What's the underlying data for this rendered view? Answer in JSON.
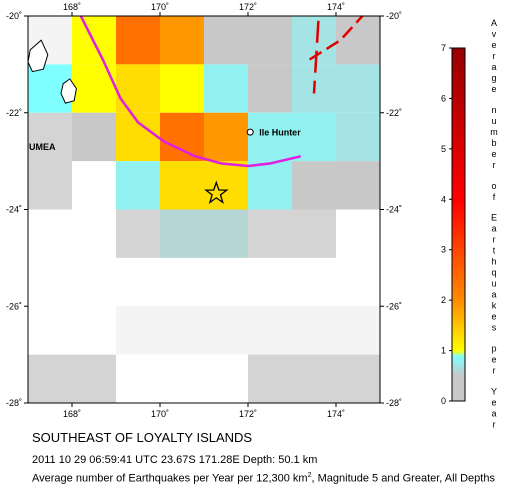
{
  "map": {
    "lon_ticks": [
      {
        "value": 168,
        "label": "168˚"
      },
      {
        "value": 170,
        "label": "170˚"
      },
      {
        "value": 172,
        "label": "172˚"
      },
      {
        "value": 174,
        "label": "174˚"
      }
    ],
    "lat_ticks": [
      {
        "value": -20,
        "label": "-20˚"
      },
      {
        "value": -22,
        "label": "-22˚"
      },
      {
        "value": -24,
        "label": "-24˚"
      },
      {
        "value": -26,
        "label": "-26˚"
      },
      {
        "value": -28,
        "label": "-28˚"
      }
    ],
    "extent": {
      "lon": [
        167,
        175
      ],
      "lat": [
        -28,
        -20
      ]
    },
    "cell_size_deg": 1,
    "grid_cells": [
      {
        "lon": 167,
        "lat": -20,
        "v": 0.0
      },
      {
        "lon": 168,
        "lat": -20,
        "v": 1.0
      },
      {
        "lon": 169,
        "lat": -20,
        "v": 2.4
      },
      {
        "lon": 170,
        "lat": -20,
        "v": 1.9
      },
      {
        "lon": 171,
        "lat": -20,
        "v": 0.3
      },
      {
        "lon": 172,
        "lat": -20,
        "v": 0.3
      },
      {
        "lon": 173,
        "lat": -20,
        "v": 0.7
      },
      {
        "lon": 174,
        "lat": -20,
        "v": 0.3
      },
      {
        "lon": 167,
        "lat": -21,
        "v": 0.9
      },
      {
        "lon": 168,
        "lat": -21,
        "v": 1.0
      },
      {
        "lon": 169,
        "lat": -21,
        "v": 1.3
      },
      {
        "lon": 170,
        "lat": -21,
        "v": 1.0
      },
      {
        "lon": 171,
        "lat": -21,
        "v": 0.8
      },
      {
        "lon": 172,
        "lat": -21,
        "v": 0.4
      },
      {
        "lon": 173,
        "lat": -21,
        "v": 0.7
      },
      {
        "lon": 174,
        "lat": -21,
        "v": 0.7
      },
      {
        "lon": 167,
        "lat": -22,
        "v": 0.2
      },
      {
        "lon": 168,
        "lat": -22,
        "v": 0.3
      },
      {
        "lon": 169,
        "lat": -22,
        "v": 1.3
      },
      {
        "lon": 170,
        "lat": -22,
        "v": 2.4
      },
      {
        "lon": 171,
        "lat": -22,
        "v": 1.9
      },
      {
        "lon": 172,
        "lat": -22,
        "v": 0.8
      },
      {
        "lon": 173,
        "lat": -22,
        "v": 0.8
      },
      {
        "lon": 174,
        "lat": -22,
        "v": 0.7
      },
      {
        "lon": 167,
        "lat": -23,
        "v": 0.2
      },
      {
        "lon": 169,
        "lat": -23,
        "v": 0.8
      },
      {
        "lon": 170,
        "lat": -23,
        "v": 1.3
      },
      {
        "lon": 171,
        "lat": -23,
        "v": 1.3
      },
      {
        "lon": 172,
        "lat": -23,
        "v": 0.8
      },
      {
        "lon": 173,
        "lat": -23,
        "v": 0.5
      },
      {
        "lon": 174,
        "lat": -23,
        "v": 0.5
      },
      {
        "lon": 169,
        "lat": -24,
        "v": 0.2
      },
      {
        "lon": 170,
        "lat": -24,
        "v": 0.6
      },
      {
        "lon": 171,
        "lat": -24,
        "v": 0.6
      },
      {
        "lon": 172,
        "lat": -24,
        "v": 0.2
      },
      {
        "lon": 173,
        "lat": -24,
        "v": 0.2
      },
      {
        "lon": 169,
        "lat": -26,
        "v": 0.1
      },
      {
        "lon": 170,
        "lat": -26,
        "v": 0.1
      },
      {
        "lon": 171,
        "lat": -26,
        "v": 0.1
      },
      {
        "lon": 172,
        "lat": -26,
        "v": 0.1
      },
      {
        "lon": 173,
        "lat": -26,
        "v": 0.1
      },
      {
        "lon": 174,
        "lat": -26,
        "v": 0.1
      },
      {
        "lon": 167,
        "lat": -27,
        "v": 0.15
      },
      {
        "lon": 168,
        "lat": -27,
        "v": 0.15
      },
      {
        "lon": 172,
        "lat": -27,
        "v": 0.2
      },
      {
        "lon": 173,
        "lat": -27,
        "v": 0.2
      },
      {
        "lon": 174,
        "lat": -27,
        "v": 0.2
      },
      {
        "lon": 172,
        "lat": -28,
        "v": 0.4
      },
      {
        "lon": 173,
        "lat": -28,
        "v": 0.4
      },
      {
        "lon": 174,
        "lat": -28,
        "v": 0.3
      }
    ],
    "trench": [
      [
        168.2,
        -20.0
      ],
      [
        168.7,
        -20.9
      ],
      [
        169.1,
        -21.7
      ],
      [
        169.5,
        -22.2
      ],
      [
        170.1,
        -22.6
      ],
      [
        170.8,
        -22.9
      ],
      [
        171.4,
        -23.05
      ],
      [
        172.0,
        -23.1
      ],
      [
        172.5,
        -23.05
      ],
      [
        173.2,
        -22.9
      ]
    ],
    "ridge": [
      [
        173.4,
        -20.9
      ],
      [
        174.1,
        -20.5
      ],
      [
        174.6,
        -20.0
      ]
    ],
    "ridge_branch": [
      [
        173.6,
        -20.1
      ],
      [
        173.5,
        -21.6
      ]
    ],
    "islands": [
      [
        [
          167.05,
          -20.7
        ],
        [
          167.3,
          -20.5
        ],
        [
          167.45,
          -20.8
        ],
        [
          167.35,
          -21.1
        ],
        [
          167.1,
          -21.15
        ],
        [
          167.0,
          -20.95
        ]
      ],
      [
        [
          167.8,
          -21.4
        ],
        [
          167.95,
          -21.3
        ],
        [
          168.1,
          -21.5
        ],
        [
          168.05,
          -21.75
        ],
        [
          167.85,
          -21.8
        ],
        [
          167.75,
          -21.6
        ]
      ]
    ],
    "places": [
      {
        "name": "Ile Hunter",
        "lon": 172.05,
        "lat": -22.4,
        "marker": true
      },
      {
        "name": "UMEA",
        "lon": 167.0,
        "lat": -22.7,
        "marker": false
      }
    ],
    "epicenter": {
      "lon": 171.28,
      "lat": -23.67
    }
  },
  "legend": {
    "title": "Average number of Earthquakes per Year",
    "min": 0,
    "max": 7,
    "ticks": [
      "0",
      "1",
      "2",
      "3",
      "4",
      "5",
      "6",
      "7"
    ],
    "colors": {
      "low_gray": "#c8c8c8",
      "cyan": "#7fffff",
      "yellow": "#ffff00",
      "orange": "#ff8c00",
      "red": "#ff0000",
      "dark_red": "#960000"
    }
  },
  "caption": {
    "title": "SOUTHEAST OF LOYALTY ISLANDS",
    "event": "2011 10 29 06:59:41 UTC 23.67S 171.28E Depth: 50.1 km",
    "desc_prefix": "Average number of Earthquakes per Year per 12,300 km",
    "desc_sup": "2",
    "desc_suffix": ", Magnitude 5 and Greater, All Depths"
  }
}
